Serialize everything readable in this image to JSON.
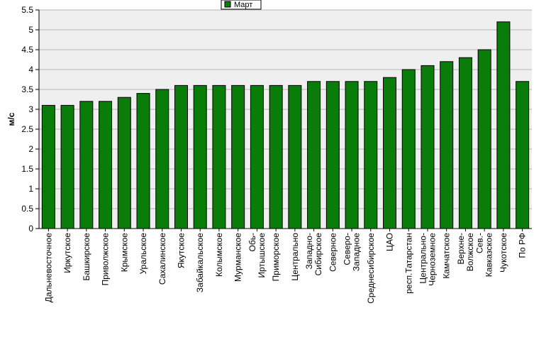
{
  "chart_data": {
    "type": "bar",
    "title": "",
    "xlabel": "",
    "ylabel": "м/с",
    "ylim": [
      0,
      5.5
    ],
    "yticks": [
      0,
      0.5,
      1,
      1.5,
      2,
      2.5,
      3,
      3.5,
      4,
      4.5,
      5,
      5.5
    ],
    "ytick_labels": [
      "0",
      "0.5",
      "1",
      "1.5",
      "2",
      "2.5",
      "3",
      "3.5",
      "4",
      "4.5",
      "5",
      "5.5"
    ],
    "grid": "horizontal",
    "legend_position": "top-center",
    "categories": [
      "Дальневосточное",
      "Иркутское",
      "Башкирское",
      "Приволжское",
      "Крымское",
      "Уральское",
      "Сахалинское",
      "Якутское",
      "Забайкальское",
      "Колымское",
      "Мурманское",
      "Обь-Иртышское",
      "Приморское",
      "Центрально",
      "Западно-Сибирское",
      "Северное",
      "Северо-Западное",
      "Среднесибирское",
      "ЦАО",
      "респ.Татарстан",
      "Центрально-Черноземное",
      "Камчатское",
      "Верхне-Волжское",
      "Сев.-Кавказское",
      "Чукотское",
      "По РФ"
    ],
    "category_lines": [
      [
        "Дальневосточное"
      ],
      [
        "Иркутское"
      ],
      [
        "Башкирское"
      ],
      [
        "Приволжское"
      ],
      [
        "Крымское"
      ],
      [
        "Уральское"
      ],
      [
        "Сахалинское"
      ],
      [
        "Якутское"
      ],
      [
        "Забайкальское"
      ],
      [
        "Колымское"
      ],
      [
        "Мурманское"
      ],
      [
        "Обь-",
        "Иртышское"
      ],
      [
        "Приморское"
      ],
      [
        "Центрально"
      ],
      [
        "Западно-",
        "Сибирское"
      ],
      [
        "Северное"
      ],
      [
        "Северо-",
        "Западное"
      ],
      [
        "Среднесибирское"
      ],
      [
        "ЦАО"
      ],
      [
        "респ.Татарстан"
      ],
      [
        "Центрально-",
        "Черноземное"
      ],
      [
        "Камчатское"
      ],
      [
        "Верхне-",
        "Волжское"
      ],
      [
        "Сев.-",
        "Кавказское"
      ],
      [
        "Чукотское"
      ],
      [
        "По РФ"
      ]
    ],
    "series": [
      {
        "name": "Март",
        "color": "#0a7c0a",
        "values": [
          3.1,
          3.1,
          3.2,
          3.2,
          3.3,
          3.4,
          3.5,
          3.6,
          3.6,
          3.6,
          3.6,
          3.6,
          3.6,
          3.6,
          3.7,
          3.7,
          3.7,
          3.7,
          3.8,
          4.0,
          4.1,
          4.2,
          4.3,
          4.5,
          5.2,
          3.7
        ]
      }
    ],
    "colors": {
      "plot_background": "#efefef",
      "grid": "#b4b4b4",
      "axis": "#000000"
    }
  }
}
